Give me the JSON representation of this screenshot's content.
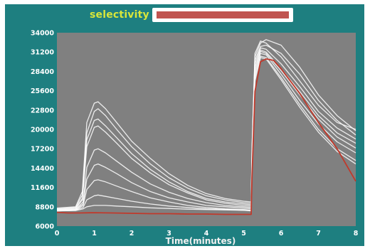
{
  "chart_data": {
    "type": "line",
    "title": "selectivity",
    "xlabel": "Time(minutes)",
    "ylabel": "",
    "xlim": [
      0,
      8
    ],
    "ylim": [
      6000,
      34000
    ],
    "x_ticks": [
      "0",
      "1",
      "2",
      "3",
      "4",
      "5",
      "6",
      "7",
      "8"
    ],
    "y_ticks": [
      "6000",
      "8800",
      "11600",
      "14400",
      "17200",
      "20000",
      "22800",
      "25600",
      "28400",
      "31200",
      "34000"
    ],
    "background_color": "#808080",
    "panel_color": "#1e7f80",
    "grid": false,
    "legend": "none",
    "series": [
      {
        "color": "#ffffff",
        "x": [
          0,
          0.5,
          0.68,
          0.8,
          1.0,
          1.1,
          1.3,
          1.6,
          2.0,
          2.5,
          3.0,
          3.5,
          4.0,
          4.5,
          5.0,
          5.2,
          5.22,
          5.3,
          5.45,
          5.6,
          6.0,
          6.5,
          7.0,
          7.5,
          8.0
        ],
        "y": [
          8600,
          8800,
          11000,
          21000,
          23800,
          24000,
          23000,
          21000,
          18300,
          15800,
          13600,
          11900,
          10700,
          10000,
          9600,
          9500,
          17000,
          31000,
          32800,
          32500,
          30500,
          27000,
          23500,
          21000,
          20000
        ]
      },
      {
        "color": "#ffffff",
        "x": [
          0,
          0.5,
          0.68,
          0.8,
          1.0,
          1.1,
          1.3,
          1.6,
          2.0,
          2.5,
          3.0,
          3.5,
          4.0,
          4.5,
          5.0,
          5.2,
          5.22,
          5.3,
          5.45,
          5.6,
          6.0,
          6.5,
          7.0,
          7.5,
          8.0
        ],
        "y": [
          8500,
          8700,
          10500,
          19500,
          22600,
          23000,
          22000,
          20000,
          17500,
          15000,
          13000,
          11500,
          10400,
          9800,
          9400,
          9300,
          17000,
          30500,
          32500,
          33000,
          32200,
          29000,
          25000,
          22000,
          19800
        ]
      },
      {
        "color": "#ffffff",
        "x": [
          0,
          0.5,
          0.68,
          0.8,
          1.0,
          1.1,
          1.3,
          1.6,
          2.0,
          2.5,
          3.0,
          3.5,
          4.0,
          4.5,
          5.0,
          5.2,
          5.22,
          5.3,
          5.45,
          5.6,
          6.0,
          6.5,
          7.0,
          7.5,
          8.0
        ],
        "y": [
          8400,
          8600,
          10000,
          18500,
          21300,
          21500,
          20500,
          18800,
          16500,
          14200,
          12400,
          11000,
          10000,
          9500,
          9200,
          9100,
          16500,
          30000,
          32000,
          32200,
          31000,
          28000,
          24200,
          21300,
          19200
        ]
      },
      {
        "color": "#ffffff",
        "x": [
          0,
          0.5,
          0.68,
          0.8,
          1.0,
          1.1,
          1.3,
          1.6,
          2.0,
          2.5,
          3.0,
          3.5,
          4.0,
          4.5,
          5.0,
          5.2,
          5.22,
          5.3,
          5.45,
          5.6,
          6.0,
          6.5,
          7.0,
          7.5,
          8.0
        ],
        "y": [
          8400,
          8500,
          9800,
          17500,
          20300,
          20500,
          19600,
          18000,
          15800,
          13700,
          12000,
          10800,
          9800,
          9300,
          9000,
          8900,
          16000,
          29500,
          31800,
          31600,
          29500,
          26200,
          22600,
          20200,
          18600
        ]
      },
      {
        "color": "#ffffff",
        "x": [
          0,
          0.5,
          0.7,
          0.8,
          1.0,
          1.1,
          1.3,
          1.6,
          2.0,
          2.5,
          3.0,
          3.5,
          4.0,
          4.5,
          5.0,
          5.2,
          5.22,
          5.3,
          5.45,
          5.6,
          6.0,
          6.5,
          7.0,
          7.5,
          8.0
        ],
        "y": [
          8300,
          8400,
          9500,
          14500,
          17000,
          17200,
          16600,
          15400,
          13800,
          12100,
          10900,
          10000,
          9400,
          9000,
          8800,
          8700,
          15800,
          29000,
          31500,
          31200,
          28800,
          25500,
          22000,
          19500,
          18000
        ]
      },
      {
        "color": "#ffffff",
        "x": [
          0,
          0.5,
          0.7,
          0.8,
          1.0,
          1.1,
          1.3,
          1.6,
          2.0,
          2.5,
          3.0,
          3.5,
          4.0,
          4.5,
          5.0,
          5.2,
          5.22,
          5.3,
          5.45,
          5.6,
          6.0,
          6.5,
          7.0,
          7.5,
          8.0
        ],
        "y": [
          8300,
          8400,
          9200,
          12800,
          14800,
          15000,
          14500,
          13600,
          12300,
          11000,
          10100,
          9500,
          9000,
          8800,
          8600,
          8500,
          15500,
          28500,
          31300,
          31000,
          28500,
          25000,
          21500,
          18900,
          17300
        ]
      },
      {
        "color": "#ffffff",
        "x": [
          0,
          0.5,
          0.7,
          0.8,
          1.0,
          1.1,
          1.3,
          1.6,
          2.0,
          2.5,
          3.0,
          3.5,
          4.0,
          4.5,
          5.0,
          5.2,
          5.22,
          5.3,
          5.45,
          5.6,
          6.0,
          6.5,
          7.0,
          7.5,
          8.0
        ],
        "y": [
          8200,
          8300,
          9000,
          11300,
          12600,
          12700,
          12400,
          11800,
          11000,
          10100,
          9500,
          9000,
          8700,
          8500,
          8400,
          8300,
          15000,
          28000,
          31000,
          30800,
          28000,
          24200,
          20800,
          18200,
          16600
        ]
      },
      {
        "color": "#ffffff",
        "x": [
          0,
          0.5,
          0.7,
          0.8,
          1.0,
          1.1,
          1.3,
          1.6,
          2.0,
          2.5,
          3.0,
          3.5,
          4.0,
          4.5,
          5.0,
          5.2,
          5.22,
          5.3,
          5.45,
          5.6,
          6.0,
          6.5,
          7.0,
          7.5,
          8.0
        ],
        "y": [
          8200,
          8300,
          8700,
          9800,
          10400,
          10500,
          10300,
          10000,
          9600,
          9200,
          8900,
          8700,
          8500,
          8400,
          8300,
          8200,
          14500,
          27500,
          30600,
          30400,
          27500,
          23600,
          20000,
          17200,
          15500
        ]
      },
      {
        "color": "#ffffff",
        "x": [
          0,
          0.5,
          0.7,
          0.8,
          1.0,
          1.3,
          1.6,
          2.0,
          2.5,
          3.0,
          3.5,
          4.0,
          4.5,
          5.0,
          5.2,
          5.22,
          5.3,
          5.45,
          5.6,
          6.0,
          6.5,
          7.0,
          7.5,
          8.0
        ],
        "y": [
          8200,
          8250,
          8500,
          8800,
          9000,
          9000,
          8900,
          8800,
          8650,
          8550,
          8450,
          8400,
          8350,
          8300,
          8250,
          14000,
          27000,
          30400,
          30200,
          27200,
          23200,
          19600,
          16800,
          15000
        ]
      },
      {
        "color": "#c0392b",
        "x": [
          0,
          0.3,
          0.6,
          1.0,
          1.5,
          2.0,
          2.5,
          3.0,
          3.5,
          4.0,
          4.5,
          5.0,
          5.2,
          5.22,
          5.3,
          5.45,
          5.6,
          5.8,
          6.0,
          6.5,
          7.0,
          7.5,
          8.0
        ],
        "y": [
          8000,
          7900,
          7900,
          7950,
          7900,
          7850,
          7800,
          7800,
          7750,
          7750,
          7700,
          7700,
          7700,
          13000,
          25500,
          29800,
          30200,
          30000,
          28800,
          25200,
          21000,
          17200,
          12500
        ]
      }
    ]
  }
}
